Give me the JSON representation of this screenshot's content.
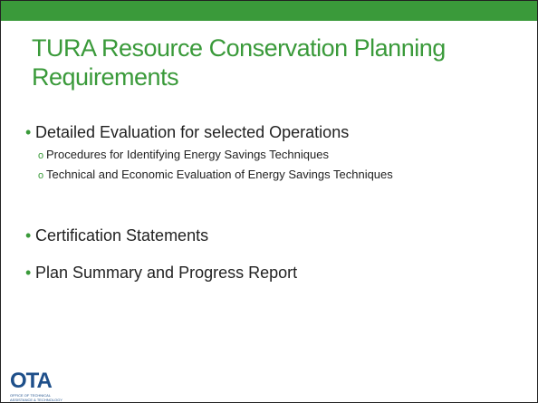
{
  "title": "TURA Resource Conservation Planning Requirements",
  "bullets": [
    {
      "text": "Detailed Evaluation for selected Operations",
      "subitems": [
        "Procedures for Identifying Energy Savings Techniques",
        "Technical and Economic Evaluation of Energy Savings Techniques"
      ]
    },
    {
      "text": "Certification Statements"
    },
    {
      "text": "Plan Summary and Progress Report"
    }
  ],
  "logo": {
    "name": "OTA",
    "caption": "OFFICE OF TECHNICAL ASSISTANCE & TECHNOLOGY"
  }
}
